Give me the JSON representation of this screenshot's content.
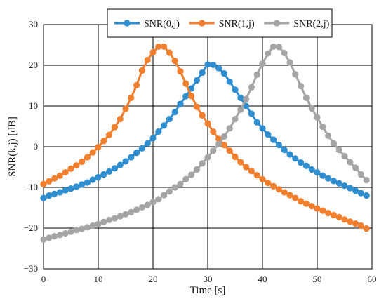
{
  "chart_data": {
    "type": "line",
    "title": "",
    "xlabel": "Time [s]",
    "ylabel": "SNR(k,j) [dB]",
    "xlim": [
      0,
      60
    ],
    "ylim": [
      -30,
      30
    ],
    "xticks": [
      "0",
      "10",
      "20",
      "30",
      "40",
      "50",
      "60"
    ],
    "yticks": [
      "−30",
      "−20",
      "−10",
      "0",
      "10",
      "20",
      "30"
    ],
    "grid": true,
    "legend_position": "top",
    "x": [
      0,
      1,
      2,
      3,
      4,
      5,
      6,
      7,
      8,
      9,
      10,
      11,
      12,
      13,
      14,
      15,
      16,
      17,
      18,
      19,
      20,
      21,
      22,
      23,
      24,
      25,
      26,
      27,
      28,
      29,
      30,
      31,
      32,
      33,
      34,
      35,
      36,
      37,
      38,
      39,
      40,
      41,
      42,
      43,
      44,
      45,
      46,
      47,
      48,
      49,
      50,
      51,
      52,
      53,
      54,
      55,
      56,
      57,
      58,
      59
    ],
    "series": [
      {
        "name": "SNR(0,j)",
        "color": "#2E8ED0",
        "values": [
          -12.6,
          -12.0,
          -11.6,
          -11.2,
          -10.7,
          -10.3,
          -9.8,
          -9.3,
          -8.8,
          -8.1,
          -7.5,
          -6.8,
          -6.1,
          -5.3,
          -4.5,
          -3.6,
          -2.6,
          -1.5,
          -0.4,
          0.8,
          2.1,
          3.7,
          5.2,
          6.8,
          8.5,
          10.5,
          12.4,
          14.3,
          16.3,
          18.2,
          20.2,
          20.1,
          19.3,
          18.0,
          16.0,
          14.0,
          12.0,
          10.0,
          8.1,
          6.0,
          4.5,
          3.0,
          1.7,
          0.4,
          -0.8,
          -1.9,
          -2.9,
          -3.9,
          -4.7,
          -5.6,
          -6.3,
          -7.1,
          -7.8,
          -8.4,
          -9.0,
          -9.6,
          -10.2,
          -10.8,
          -11.4,
          -12.0
        ]
      },
      {
        "name": "SNR(1,j)",
        "color": "#F27F2E",
        "values": [
          -9.2,
          -8.5,
          -7.8,
          -7.1,
          -6.3,
          -5.4,
          -4.6,
          -3.7,
          -2.6,
          -1.4,
          -0.1,
          1.4,
          2.9,
          4.8,
          6.8,
          9.3,
          12.0,
          15.1,
          18.7,
          21.3,
          23.2,
          24.6,
          24.6,
          23.1,
          21.1,
          18.5,
          15.5,
          12.5,
          9.8,
          7.7,
          5.7,
          3.7,
          1.9,
          0.4,
          -1.0,
          -2.5,
          -3.8,
          -5.0,
          -6.0,
          -7.0,
          -8.0,
          -8.9,
          -9.7,
          -10.5,
          -11.2,
          -11.9,
          -12.6,
          -13.4,
          -14.0,
          -14.6,
          -15.2,
          -15.7,
          -16.3,
          -16.8,
          -17.3,
          -17.9,
          -18.4,
          -18.9,
          -19.4,
          -20.1
        ]
      },
      {
        "name": "SNR(2,j)",
        "color": "#A5A5A5",
        "values": [
          -22.8,
          -22.4,
          -22.0,
          -21.7,
          -21.3,
          -20.9,
          -20.5,
          -20.2,
          -19.8,
          -19.4,
          -19.0,
          -18.5,
          -18.0,
          -17.6,
          -17.1,
          -16.6,
          -16.1,
          -15.5,
          -14.9,
          -14.3,
          -13.6,
          -12.9,
          -11.9,
          -11.0,
          -10.0,
          -9.2,
          -8.0,
          -6.9,
          -5.6,
          -4.1,
          -2.6,
          -1.0,
          0.6,
          2.5,
          4.5,
          6.8,
          9.1,
          11.7,
          14.6,
          17.7,
          20.4,
          22.9,
          24.6,
          24.5,
          23.0,
          20.7,
          17.8,
          14.9,
          12.0,
          9.4,
          7.2,
          4.9,
          2.7,
          0.8,
          -0.8,
          -2.3,
          -3.8,
          -5.2,
          -6.8,
          -8.2
        ]
      }
    ]
  }
}
